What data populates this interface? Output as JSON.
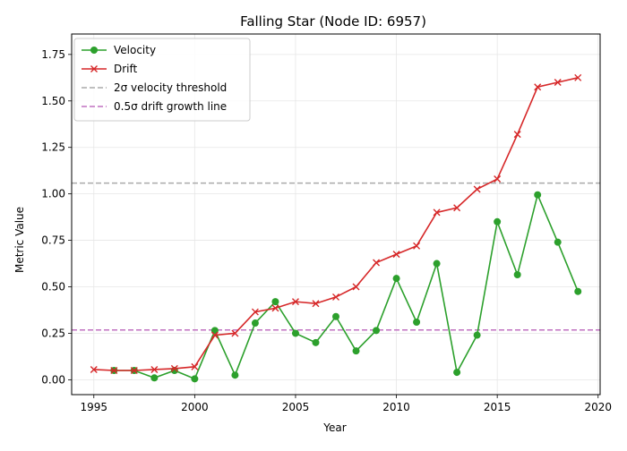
{
  "chart_data": {
    "type": "line",
    "title": "Falling Star (Node ID: 6957)",
    "xlabel": "Year",
    "ylabel": "Metric Value",
    "xlim": [
      1993.9,
      2020.1
    ],
    "ylim": [
      -0.08,
      1.86
    ],
    "x_ticks": [
      1995,
      2000,
      2005,
      2010,
      2015,
      2020
    ],
    "y_ticks": [
      0.0,
      0.25,
      0.5,
      0.75,
      1.0,
      1.25,
      1.5,
      1.75
    ],
    "y_tick_labels": [
      "0.00",
      "0.25",
      "0.50",
      "0.75",
      "1.00",
      "1.25",
      "1.50",
      "1.75"
    ],
    "grid": true,
    "legend_position": "upper-left",
    "series": [
      {
        "name": "Velocity",
        "color": "#2ca02c",
        "marker": "circle",
        "x": [
          1996,
          1997,
          1998,
          1999,
          2000,
          2001,
          2002,
          2003,
          2004,
          2005,
          2006,
          2007,
          2008,
          2009,
          2010,
          2011,
          2012,
          2013,
          2014,
          2015,
          2016,
          2017,
          2018,
          2019
        ],
        "values": [
          0.05,
          0.05,
          0.01,
          0.05,
          0.005,
          0.265,
          0.025,
          0.305,
          0.42,
          0.25,
          0.2,
          0.34,
          0.155,
          0.265,
          0.545,
          0.31,
          0.625,
          0.04,
          0.24,
          0.85,
          0.565,
          0.995,
          0.74,
          0.475
        ]
      },
      {
        "name": "Drift",
        "color": "#d62728",
        "marker": "x",
        "x": [
          1995,
          1996,
          1997,
          1998,
          1999,
          2000,
          2001,
          2002,
          2003,
          2004,
          2005,
          2006,
          2007,
          2008,
          2009,
          2010,
          2011,
          2012,
          2013,
          2014,
          2015,
          2016,
          2017,
          2018,
          2019
        ],
        "values": [
          0.055,
          0.05,
          0.05,
          0.055,
          0.06,
          0.07,
          0.24,
          0.25,
          0.365,
          0.385,
          0.42,
          0.41,
          0.445,
          0.5,
          0.63,
          0.675,
          0.72,
          0.9,
          0.925,
          1.025,
          1.08,
          1.32,
          1.575,
          1.6,
          1.625
        ]
      }
    ],
    "reference_lines": [
      {
        "name": "2σ velocity threshold",
        "value": 1.058,
        "color": "#aaaaaa",
        "style": "dashed"
      },
      {
        "name": "0.5σ drift growth line",
        "value": 0.268,
        "color": "#c070c0",
        "style": "dashed"
      }
    ]
  }
}
